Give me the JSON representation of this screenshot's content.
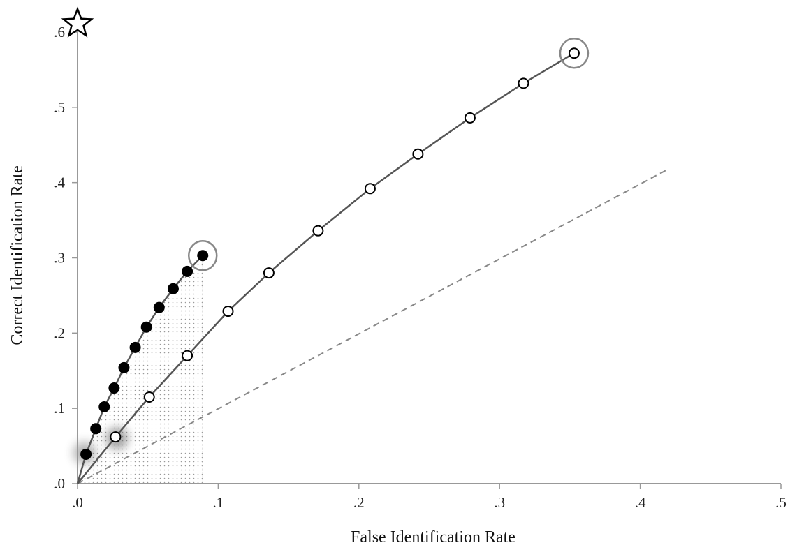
{
  "chart_data": {
    "type": "line",
    "title": "",
    "xlabel": "False Identification Rate",
    "ylabel": "Correct Identification Rate",
    "xlim": [
      0,
      0.5
    ],
    "ylim": [
      0,
      0.6
    ],
    "x_ticks": [
      {
        "value": 0,
        "label": ".0"
      },
      {
        "value": 0.1,
        "label": ".1"
      },
      {
        "value": 0.2,
        "label": ".2"
      },
      {
        "value": 0.3,
        "label": ".3"
      },
      {
        "value": 0.4,
        "label": ".4"
      },
      {
        "value": 0.5,
        "label": ".5"
      }
    ],
    "y_ticks": [
      {
        "value": 0,
        "label": ".0"
      },
      {
        "value": 0.1,
        "label": ".1"
      },
      {
        "value": 0.2,
        "label": ".2"
      },
      {
        "value": 0.3,
        "label": ".3"
      },
      {
        "value": 0.4,
        "label": ".4"
      },
      {
        "value": 0.5,
        "label": ".5"
      },
      {
        "value": 0.6,
        "label": ".6"
      }
    ],
    "grid": false,
    "legend": "none",
    "series": [
      {
        "marker": "filled-circle",
        "color": "#000000",
        "x": [
          0.006,
          0.013,
          0.019,
          0.026,
          0.033,
          0.041,
          0.049,
          0.058,
          0.068,
          0.078,
          0.089
        ],
        "y": [
          0.039,
          0.073,
          0.102,
          0.127,
          0.154,
          0.181,
          0.208,
          0.234,
          0.259,
          0.282,
          0.303
        ],
        "highlighted_end": true,
        "shaded_area_under": true
      },
      {
        "marker": "open-circle",
        "color": "#000000",
        "x": [
          0.027,
          0.051,
          0.078,
          0.107,
          0.136,
          0.171,
          0.208,
          0.242,
          0.279,
          0.317,
          0.353
        ],
        "y": [
          0.062,
          0.115,
          0.17,
          0.229,
          0.28,
          0.336,
          0.392,
          0.438,
          0.486,
          0.532,
          0.572
        ],
        "highlighted_end": true,
        "highlighted_start": true
      }
    ],
    "reference_line": {
      "style": "dashed",
      "color": "#888888",
      "x": [
        0,
        0.418
      ],
      "y": [
        0,
        0.416
      ]
    },
    "star_marker": {
      "x": 0,
      "y": 0.6
    }
  }
}
